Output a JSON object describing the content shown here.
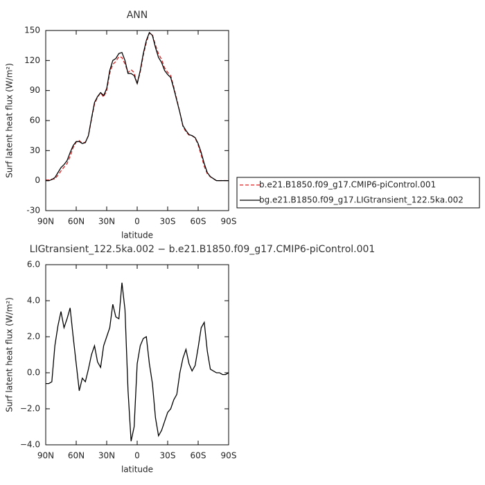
{
  "chart_data": [
    {
      "type": "line",
      "title": "ANN",
      "xlabel": "latitude",
      "ylabel": "Surf latent heat flux (W/m²)",
      "x": [
        90,
        87,
        84,
        81,
        78,
        75,
        72,
        69,
        66,
        63,
        60,
        57,
        54,
        51,
        48,
        45,
        42,
        39,
        36,
        33,
        30,
        27,
        24,
        21,
        18,
        15,
        12,
        9,
        6,
        3,
        0,
        -3,
        -6,
        -9,
        -12,
        -15,
        -18,
        -21,
        -24,
        -27,
        -30,
        -33,
        -36,
        -39,
        -42,
        -45,
        -48,
        -51,
        -54,
        -57,
        -60,
        -63,
        -66,
        -69,
        -72,
        -75,
        -78,
        -81,
        -84,
        -87,
        -90
      ],
      "xlim": [
        90,
        -90
      ],
      "xticks": [
        {
          "value": 90,
          "label": "90N"
        },
        {
          "value": 60,
          "label": "60N"
        },
        {
          "value": 30,
          "label": "30N"
        },
        0,
        {
          "value": -30,
          "label": "30S"
        },
        {
          "value": -60,
          "label": "60S"
        },
        {
          "value": -90,
          "label": "90S"
        }
      ],
      "ylim": [
        -30,
        150
      ],
      "yticks": [
        -30,
        0,
        30,
        60,
        90,
        120,
        150
      ],
      "series": [
        {
          "name": "b.e21.B1850.f09_g17.CMIP6-piControl.001",
          "color": "#d62020",
          "dash": true,
          "values": [
            0.6,
            0.6,
            1.5,
            1.5,
            5.4,
            9.6,
            13.5,
            17,
            24.4,
            33,
            38.5,
            40,
            37.3,
            38.5,
            44.8,
            61,
            76.5,
            83.4,
            87.7,
            83.5,
            90,
            107.5,
            116.2,
            118.9,
            124,
            123,
            116.5,
            108,
            110.8,
            108,
            96.5,
            108.5,
            125.1,
            138,
            147.5,
            145.6,
            135.5,
            126.5,
            121.2,
            112.7,
            108.2,
            105,
            93.5,
            81.2,
            68,
            54.2,
            48.7,
            45.5,
            44.9,
            42.6,
            35.6,
            25.5,
            14.2,
            6.8,
            3.8,
            1.9,
            0,
            0,
            0.1,
            0.1,
            0
          ]
        },
        {
          "name": "bg.e21.B1850.f09_g17.LIGtransient_122.5ka.002",
          "color": "#000000",
          "dash": false,
          "values": [
            0,
            0,
            1,
            3,
            8,
            13,
            16,
            20,
            28,
            35,
            39,
            39,
            37,
            38,
            45,
            62,
            78,
            84,
            88,
            85,
            92,
            110,
            120,
            122,
            127,
            128,
            120,
            107,
            107,
            105,
            97,
            110,
            127,
            140,
            148,
            145,
            133,
            123,
            118,
            110,
            106,
            103,
            92,
            80,
            68,
            55,
            50,
            46,
            45,
            43,
            37,
            28,
            17,
            8,
            4,
            2,
            0,
            0,
            0,
            0,
            0
          ]
        }
      ]
    },
    {
      "type": "line",
      "title": "LIGtransient_122.5ka.002 − b.e21.B1850.f09_g17.CMIP6-piControl.001",
      "xlabel": "latitude",
      "ylabel": "Surf latent heat flux (W/m²)",
      "x": [
        90,
        87,
        84,
        81,
        78,
        75,
        72,
        69,
        66,
        63,
        60,
        57,
        54,
        51,
        48,
        45,
        42,
        39,
        36,
        33,
        30,
        27,
        24,
        21,
        18,
        15,
        12,
        9,
        6,
        3,
        0,
        -3,
        -6,
        -9,
        -12,
        -15,
        -18,
        -21,
        -24,
        -27,
        -30,
        -33,
        -36,
        -39,
        -42,
        -45,
        -48,
        -51,
        -54,
        -57,
        -60,
        -63,
        -66,
        -69,
        -72,
        -75,
        -78,
        -81,
        -84,
        -87,
        -90
      ],
      "xlim": [
        90,
        -90
      ],
      "xticks": [
        {
          "value": 90,
          "label": "90N"
        },
        {
          "value": 60,
          "label": "60N"
        },
        {
          "value": 30,
          "label": "30N"
        },
        0,
        {
          "value": -30,
          "label": "30S"
        },
        {
          "value": -60,
          "label": "60S"
        },
        {
          "value": -90,
          "label": "90S"
        }
      ],
      "ylim": [
        -4,
        6
      ],
      "yticks": [
        {
          "value": -4,
          "label": "−4.0"
        },
        {
          "value": -2,
          "label": "−2.0"
        },
        {
          "value": 0,
          "label": "0.0"
        },
        {
          "value": 2,
          "label": "2.0"
        },
        {
          "value": 4,
          "label": "4.0"
        },
        {
          "value": 6,
          "label": "6.0"
        }
      ],
      "series": [
        {
          "color": "#000000",
          "dash": false,
          "values": [
            -0.6,
            -0.6,
            -0.5,
            1.5,
            2.6,
            3.4,
            2.5,
            3.0,
            3.6,
            2.0,
            0.5,
            -1.0,
            -0.3,
            -0.5,
            0.2,
            1.0,
            1.5,
            0.6,
            0.3,
            1.5,
            2.0,
            2.5,
            3.8,
            3.1,
            3.0,
            5.0,
            3.5,
            -1.0,
            -3.8,
            -3.0,
            0.5,
            1.5,
            1.9,
            2.0,
            0.5,
            -0.6,
            -2.5,
            -3.5,
            -3.2,
            -2.7,
            -2.2,
            -2.0,
            -1.5,
            -1.2,
            0.0,
            0.8,
            1.3,
            0.5,
            0.1,
            0.4,
            1.4,
            2.5,
            2.8,
            1.2,
            0.2,
            0.1,
            0.0,
            0.0,
            -0.1,
            -0.1,
            0.0
          ]
        }
      ]
    }
  ]
}
